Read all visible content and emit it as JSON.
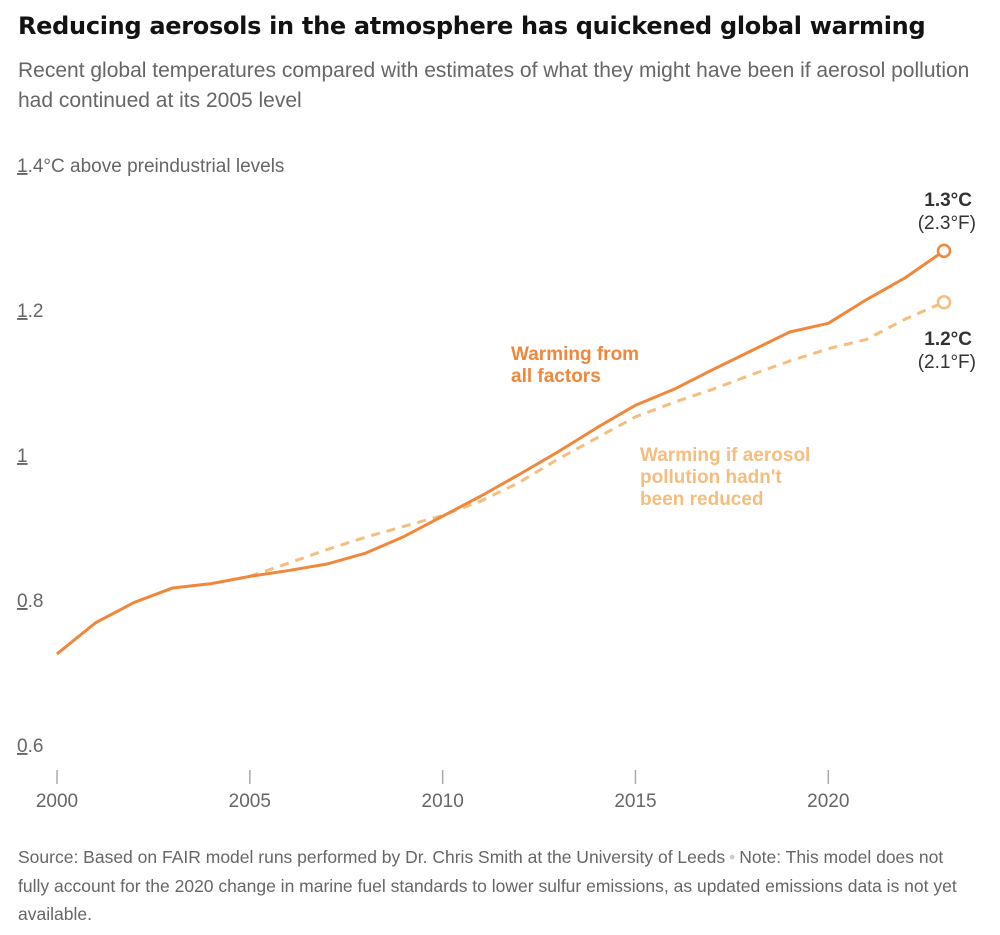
{
  "title": "Reducing aerosols in the atmosphere has quickened global warming",
  "subtitle": "Recent global temperatures compared with estimates of what they might have been if aerosol pollution had continued at its 2005 level",
  "source": {
    "source_text": "Source: Based on FAIR model runs performed by Dr. Chris Smith at the University of Leeds",
    "separator": "•",
    "note_text": "Note: This model does not fully account for the 2020 change in marine fuel standards to lower sulfur emissions, as updated emissions data is not yet available."
  },
  "colors": {
    "all_factors": "#f0873a",
    "no_reduction": "#f5bd7e",
    "axis": "#aaaaaa",
    "text_gray": "#666666"
  },
  "chart_data": {
    "type": "line",
    "title": "Reducing aerosols in the atmosphere has quickened global warming",
    "ylabel": "°C above preindustrial levels",
    "xlim": [
      2000,
      2023
    ],
    "ylim": [
      0.6,
      1.4
    ],
    "x_ticks": [
      2000,
      2005,
      2010,
      2015,
      2020
    ],
    "y_ticks": [
      {
        "value": 0.6,
        "label": "0.6"
      },
      {
        "value": 0.8,
        "label": "0.8"
      },
      {
        "value": 1.0,
        "label": "1"
      },
      {
        "value": 1.2,
        "label": "1.2"
      },
      {
        "value": 1.4,
        "label": "1.4°C above preindustrial levels"
      }
    ],
    "series": [
      {
        "name": "Warming from all factors",
        "label_lines": [
          "Warming from",
          "all factors"
        ],
        "style": "solid",
        "color": "#f0873a",
        "x": [
          2000,
          2001,
          2002,
          2003,
          2004,
          2005,
          2006,
          2007,
          2008,
          2009,
          2010,
          2011,
          2012,
          2013,
          2014,
          2015,
          2016,
          2017,
          2018,
          2019,
          2020,
          2021,
          2022,
          2023
        ],
        "values": [
          0.727,
          0.77,
          0.798,
          0.818,
          0.824,
          0.834,
          0.842,
          0.851,
          0.866,
          0.889,
          0.917,
          0.945,
          0.975,
          1.006,
          1.039,
          1.07,
          1.092,
          1.119,
          1.145,
          1.171,
          1.183,
          1.216,
          1.246,
          1.283
        ],
        "end_label": "1.3°C",
        "end_label_f": "(2.3°F)"
      },
      {
        "name": "Warming if aerosol pollution hadn't been reduced",
        "label_lines": [
          "Warming if aerosol",
          "pollution hadn't",
          "been reduced"
        ],
        "style": "dashed",
        "color": "#f5bd7e",
        "x": [
          2005,
          2006,
          2007,
          2008,
          2009,
          2010,
          2011,
          2012,
          2013,
          2014,
          2015,
          2016,
          2017,
          2018,
          2019,
          2020,
          2021,
          2022,
          2023
        ],
        "values": [
          0.834,
          0.852,
          0.871,
          0.888,
          0.903,
          0.918,
          0.938,
          0.964,
          0.996,
          1.025,
          1.054,
          1.074,
          1.092,
          1.112,
          1.131,
          1.148,
          1.161,
          1.189,
          1.212
        ],
        "end_label": "1.2°C",
        "end_label_f": "(2.1°F)"
      }
    ]
  }
}
